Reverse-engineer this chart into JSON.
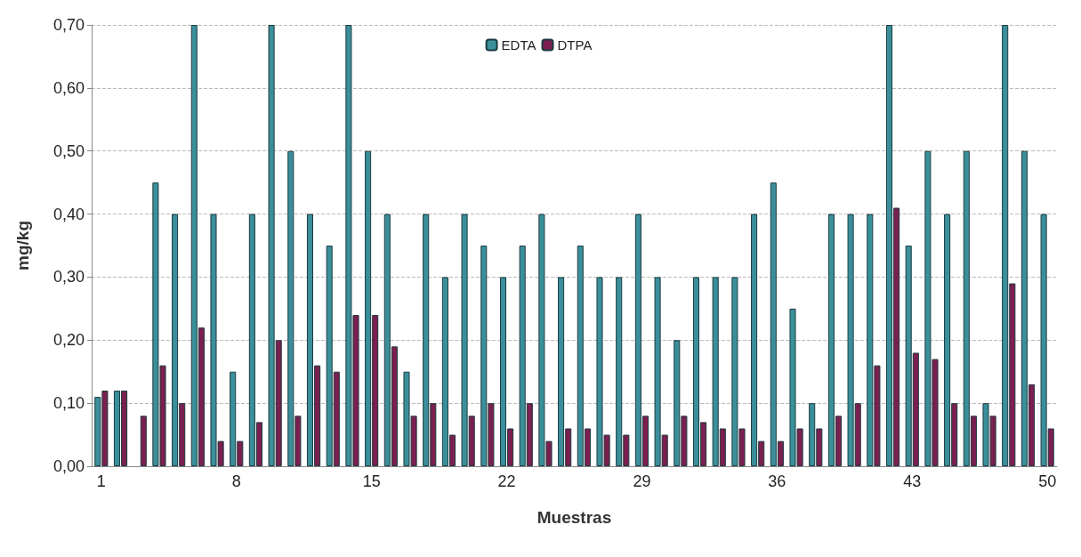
{
  "chart_data": {
    "type": "bar",
    "xlabel": "Muestras",
    "ylabel": "mg/kg",
    "categories": [
      "1",
      null,
      null,
      null,
      null,
      null,
      null,
      "8",
      null,
      null,
      null,
      null,
      null,
      null,
      "15",
      null,
      null,
      null,
      null,
      null,
      null,
      "22",
      null,
      null,
      null,
      null,
      null,
      null,
      "29",
      null,
      null,
      null,
      null,
      null,
      null,
      "36",
      null,
      null,
      null,
      null,
      null,
      null,
      "43",
      null,
      null,
      null,
      null,
      null,
      null,
      "50"
    ],
    "series": [
      {
        "name": "EDTA",
        "color": "#3a8f9a",
        "values": [
          0.11,
          0.12,
          null,
          0.45,
          0.4,
          0.7,
          0.4,
          0.15,
          0.4,
          0.7,
          0.5,
          0.4,
          0.35,
          0.7,
          0.5,
          0.4,
          0.15,
          0.4,
          0.3,
          0.4,
          0.35,
          0.3,
          0.35,
          0.4,
          0.3,
          0.35,
          0.3,
          0.3,
          0.4,
          0.3,
          0.2,
          0.3,
          0.3,
          0.3,
          0.4,
          0.45,
          0.25,
          0.1,
          0.4,
          0.4,
          0.4,
          0.7,
          0.35,
          0.5,
          0.4,
          0.5,
          0.1,
          0.7,
          0.5,
          0.4
        ]
      },
      {
        "name": "DTPA",
        "color": "#7a1f4f",
        "values": [
          0.12,
          0.12,
          0.08,
          0.16,
          0.1,
          0.22,
          0.04,
          0.04,
          0.07,
          0.2,
          0.08,
          0.16,
          0.15,
          0.24,
          0.24,
          0.19,
          0.08,
          0.1,
          0.05,
          0.08,
          0.1,
          0.06,
          0.1,
          0.04,
          0.06,
          0.06,
          0.05,
          0.05,
          0.08,
          0.05,
          0.08,
          0.07,
          0.06,
          0.06,
          0.04,
          0.04,
          0.06,
          0.06,
          0.08,
          0.1,
          0.16,
          0.41,
          0.18,
          0.17,
          0.1,
          0.08,
          0.08,
          0.29,
          0.13,
          0.06
        ]
      }
    ],
    "ylim": [
      0,
      0.7
    ],
    "yticks": [
      {
        "value": 0,
        "label": "0,00"
      },
      {
        "value": 0.1,
        "label": "0,10"
      },
      {
        "value": 0.2,
        "label": "0,20"
      },
      {
        "value": 0.3,
        "label": "0,30"
      },
      {
        "value": 0.4,
        "label": "0,40"
      },
      {
        "value": 0.5,
        "label": "0,50"
      },
      {
        "value": 0.6,
        "label": "0,60"
      },
      {
        "value": 0.7,
        "label": "0,70"
      }
    ],
    "grid": "y",
    "legend": "top"
  }
}
